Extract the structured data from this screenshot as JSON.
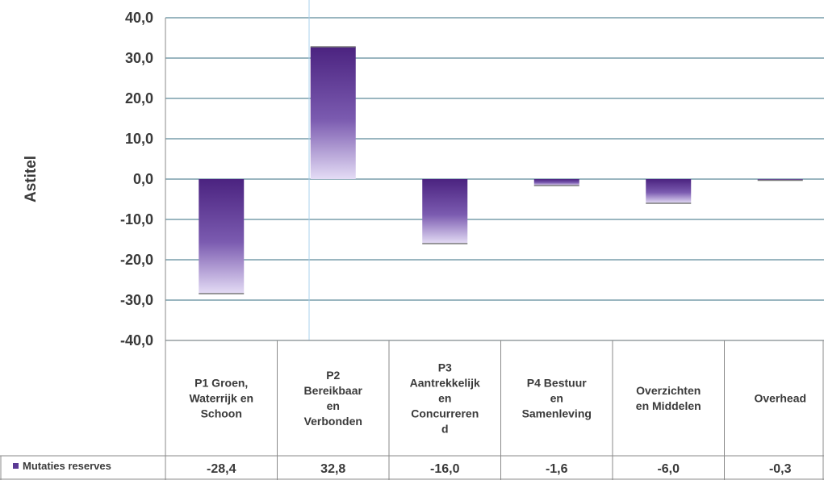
{
  "chart_data": {
    "type": "bar",
    "ylabel": "Astitel",
    "ylim": [
      -40,
      40
    ],
    "yticks": [
      "40,0",
      "30,0",
      "20,0",
      "10,0",
      "0,0",
      "-10,0",
      "-20,0",
      "-30,0",
      "-40,0"
    ],
    "grid": true,
    "categories": [
      [
        "P1 Groen,",
        "Waterrijk en",
        "Schoon"
      ],
      [
        "P2",
        "Bereikbaar",
        "en",
        "Verbonden"
      ],
      [
        "P3",
        "Aantrekkelijk",
        "en",
        "Concurreren",
        "d"
      ],
      [
        "P4 Bestuur",
        "en",
        "Samenleving"
      ],
      [
        "Overzichten",
        "en Middelen"
      ],
      [
        "Overhead"
      ]
    ],
    "series": [
      {
        "name": "Mutaties reserves",
        "values": [
          -28.4,
          32.8,
          -16.0,
          -1.6,
          -6.0,
          -0.3
        ],
        "value_labels": [
          "-28,4",
          "32,8",
          "-16,0",
          "-1,6",
          "-6,0",
          "-0,3"
        ]
      }
    ],
    "legend_placement": "data-table",
    "colors": {
      "bar_dark": "#4b2380",
      "bar_mid": "#7b5bb0",
      "bar_light": "#e4dcf5",
      "grid": "#5e8a9a",
      "table_border": "#8a8a8a",
      "legend_marker": "#5b3a94"
    }
  }
}
